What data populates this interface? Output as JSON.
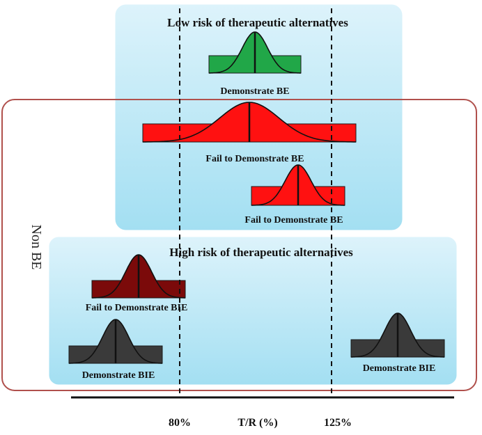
{
  "colors": {
    "box_top": "#ddf3fb",
    "box_bottom": "#a3dff2",
    "box_border": "#ffffff",
    "non_be_border": "#b0504c",
    "green": "#21a748",
    "red": "#ff1111",
    "dark_red": "#7b0a0a",
    "gray": "#3a3a3a",
    "line": "#111111"
  },
  "low_risk": {
    "title": "Low risk of therapeutic alternatives"
  },
  "high_risk": {
    "title": "High risk of therapeutic alternatives"
  },
  "non_be": {
    "label": "Non BE"
  },
  "curves": [
    {
      "id": "green-demonstrate-be",
      "label": "Demonstrate BE",
      "color": "green"
    },
    {
      "id": "red-wide-fail-be",
      "label": "Fail to Demonstrate BE",
      "color": "red"
    },
    {
      "id": "red-shifted-fail-be",
      "label": "Fail to Demonstrate BE",
      "color": "red"
    },
    {
      "id": "darkred-fail-bie",
      "label": "Fail to Demonstrate BIE",
      "color": "dark_red"
    },
    {
      "id": "gray-left-demonstrate-bie",
      "label": "Demonstrate BIE",
      "color": "gray"
    },
    {
      "id": "gray-right-demonstrate-bie",
      "label": "Demonstrate BIE",
      "color": "gray"
    }
  ],
  "axis": {
    "label": "T/R (%)",
    "ticks": [
      "80%",
      "125%"
    ]
  }
}
